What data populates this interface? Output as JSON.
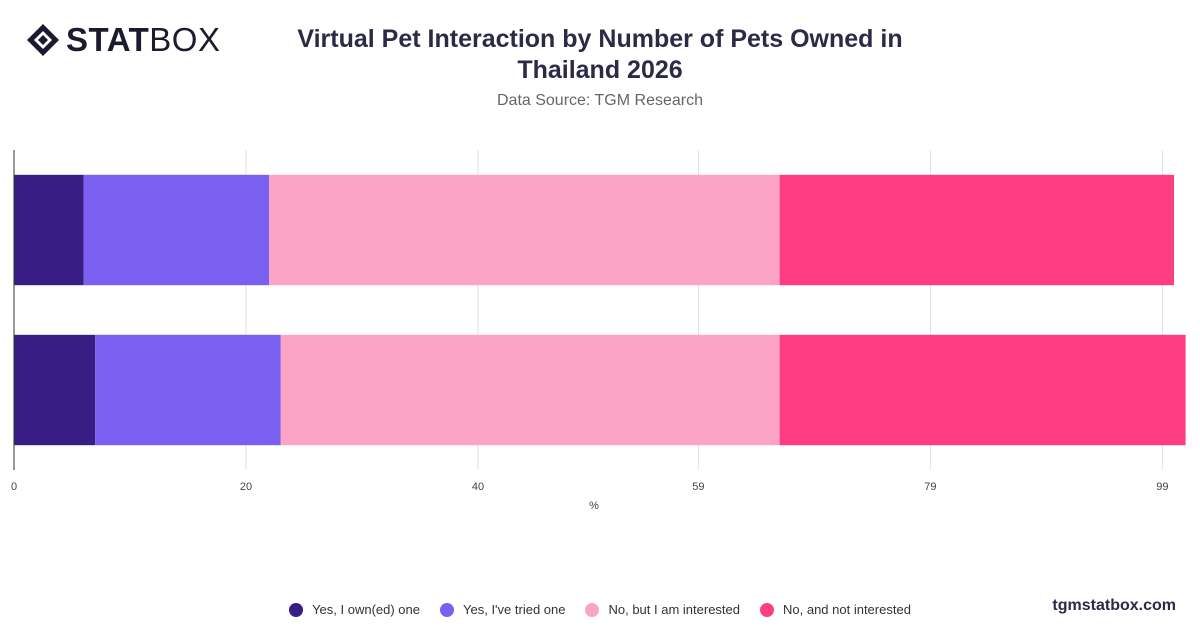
{
  "brand": {
    "logo_bold": "STAT",
    "logo_light": "BOX",
    "site": "tgmstatbox.com"
  },
  "header": {
    "title": "Virtual Pet Interaction by Number of Pets Owned in Thailand 2026",
    "subtitle": "Data Source: TGM Research"
  },
  "chart_data": {
    "type": "bar",
    "orientation": "horizontal",
    "stacked": true,
    "categories": [
      "",
      ""
    ],
    "series": [
      {
        "name": "Yes, I own(ed) one",
        "color": "#371d84",
        "values": [
          6,
          7
        ]
      },
      {
        "name": "Yes, I've tried one",
        "color": "#7b5ff0",
        "values": [
          16,
          16
        ]
      },
      {
        "name": "No, but I am interested",
        "color": "#fba4c4",
        "values": [
          44,
          43
        ]
      },
      {
        "name": "No, and not interested",
        "color": "#ff3e82",
        "values": [
          34,
          35
        ]
      }
    ],
    "xlabel": "%",
    "ylabel": "",
    "xlim": [
      0,
      100
    ],
    "xticks": [
      0,
      20,
      40,
      59,
      79,
      99
    ],
    "grid": true,
    "legend": "bottom-center"
  }
}
